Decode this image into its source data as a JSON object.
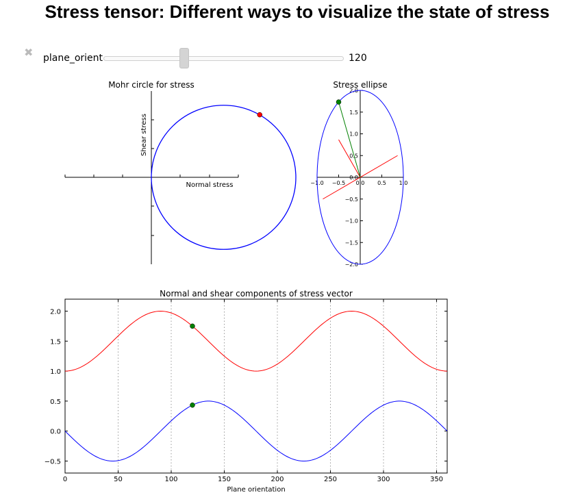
{
  "page": {
    "title": "Stress tensor: Different ways to visualize the state of stress"
  },
  "widget": {
    "close_glyph": "✖",
    "label": "plane_orient",
    "value": "120",
    "slider_fraction": 0.333
  },
  "chart_data": [
    {
      "type": "line",
      "title": "Mohr circle for stress",
      "xlabel": "Normal stress",
      "ylabel": "Shear stress",
      "circle": {
        "center_normal": 1.5,
        "center_shear": 0.0,
        "radius": 0.5
      },
      "marker": {
        "normal": 1.75,
        "shear": 0.433,
        "color": "#ff0000"
      },
      "axis_ticks_shown": false,
      "colors": {
        "circle": "#0000ff",
        "marker": "#ff0000"
      }
    },
    {
      "type": "line",
      "title": "Stress ellipse",
      "xlim": [
        -1.0,
        1.0
      ],
      "ylim": [
        -2.0,
        2.0
      ],
      "xticks": [
        "−1.0",
        "−0.5",
        "0.0",
        "0.5",
        "1.0"
      ],
      "yticks": [
        "2.0",
        "1.5",
        "1.0",
        "0.5",
        "0.0",
        "−0.5",
        "−1.0",
        "−1.5",
        "−2.0"
      ],
      "ellipse": {
        "semi_x": 1.0,
        "semi_y": 2.0
      },
      "stress_vector_end": {
        "x": -0.5,
        "y": 1.732
      },
      "plane_line": {
        "x1": -0.866,
        "y1": -0.5,
        "x2": 0.866,
        "y2": 0.5
      },
      "normal_line": {
        "x1": 0,
        "y1": 0,
        "x2": -0.5,
        "y2": 0.866
      },
      "colors": {
        "ellipse": "#0000ff",
        "stress_vector": "#008000",
        "lines": "#ff0000",
        "marker": "#008000"
      }
    },
    {
      "type": "line",
      "title": "Normal and shear components of stress vector",
      "xlabel": "Plane orientation",
      "ylabel": "",
      "xlim": [
        0,
        360
      ],
      "ylim": [
        -0.7,
        2.2
      ],
      "xticks": [
        "0",
        "50",
        "100",
        "150",
        "200",
        "250",
        "300",
        "350"
      ],
      "yticks": [
        "2.0",
        "1.5",
        "1.0",
        "0.5",
        "0.0",
        "−0.5"
      ],
      "grid_x": true,
      "series": [
        {
          "formula": "1.5 - 0.5*cos(2*theta)",
          "color": "#ff0000"
        },
        {
          "formula": "-0.5*sin(2*theta)",
          "color": "#0000ff"
        }
      ],
      "markers": [
        {
          "x": 120,
          "y": 1.75,
          "color": "#008000"
        },
        {
          "x": 120,
          "y": 0.433,
          "color": "#008000"
        }
      ]
    }
  ]
}
